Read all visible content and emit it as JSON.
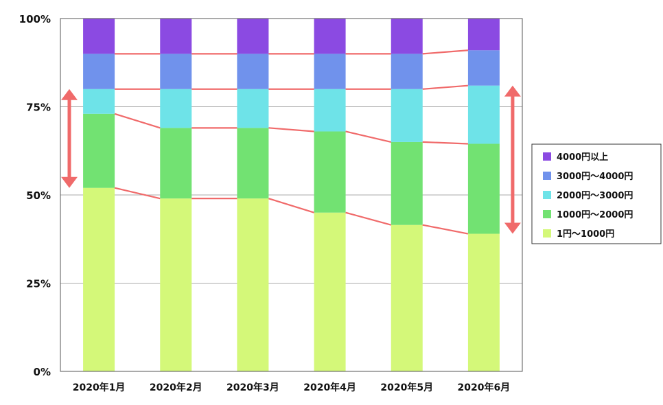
{
  "chart_data": {
    "type": "bar",
    "stacked": true,
    "normalized": true,
    "categories": [
      "2020年1月",
      "2020年2月",
      "2020年3月",
      "2020年4月",
      "2020年5月",
      "2020年6月"
    ],
    "series": [
      {
        "name": "1円～1000円",
        "color": "#d4f879",
        "values": [
          52,
          49,
          49,
          45,
          41.5,
          39
        ]
      },
      {
        "name": "1000円～2000円",
        "color": "#72e272",
        "values": [
          21,
          20,
          20,
          23,
          23.5,
          25.5
        ]
      },
      {
        "name": "2000円～3000円",
        "color": "#6ee3e8",
        "values": [
          7,
          11,
          11,
          12,
          15,
          16.5
        ]
      },
      {
        "name": "3000円～4000円",
        "color": "#7092ec",
        "values": [
          10,
          10,
          10,
          10,
          10,
          10
        ]
      },
      {
        "name": "4000円以上",
        "color": "#8b4ae2",
        "values": [
          10,
          10,
          10,
          10,
          10,
          9
        ]
      }
    ],
    "yticks": [
      "0%",
      "25%",
      "50%",
      "75%",
      "100%"
    ],
    "ylim": [
      0,
      100
    ],
    "grid": true,
    "legend_position": "right",
    "connector_color": "#f06a6a",
    "annotations": [
      {
        "type": "double-arrow",
        "category": "2020年1月",
        "from": 52,
        "to": 80,
        "color": "#f06a6a"
      },
      {
        "type": "double-arrow",
        "category": "2020年6月",
        "from": 39,
        "to": 81,
        "color": "#f06a6a"
      }
    ]
  }
}
